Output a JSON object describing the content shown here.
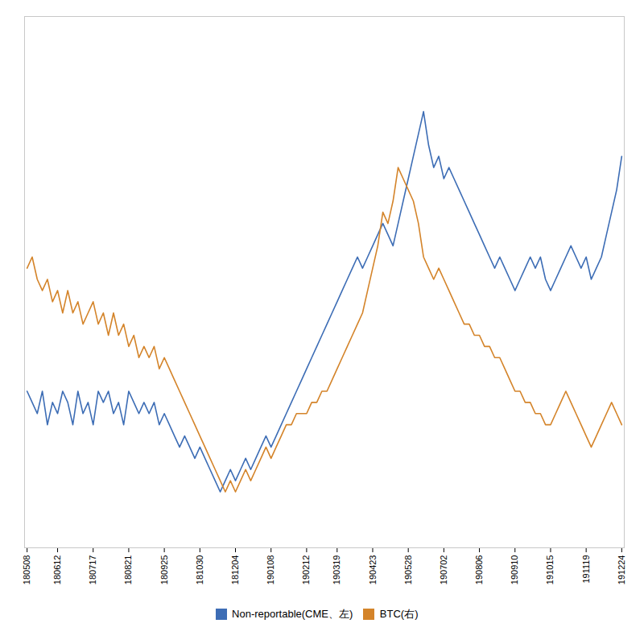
{
  "chart_data": {
    "type": "line",
    "categories": [
      "180508",
      null,
      null,
      null,
      null,
      null,
      "180612",
      null,
      null,
      null,
      null,
      null,
      null,
      "180717",
      null,
      null,
      null,
      null,
      null,
      null,
      "180821",
      null,
      null,
      null,
      null,
      null,
      null,
      "180925",
      null,
      null,
      null,
      null,
      null,
      null,
      "181030",
      null,
      null,
      null,
      null,
      null,
      null,
      "181204",
      null,
      null,
      null,
      null,
      null,
      null,
      "190108",
      null,
      null,
      null,
      null,
      null,
      null,
      "190212",
      null,
      null,
      null,
      null,
      null,
      "190319",
      null,
      null,
      null,
      null,
      null,
      null,
      "190423",
      null,
      null,
      null,
      null,
      null,
      null,
      "190528",
      null,
      null,
      null,
      null,
      null,
      null,
      "190702",
      null,
      null,
      null,
      null,
      null,
      null,
      "190806",
      null,
      null,
      null,
      null,
      null,
      null,
      "190910",
      null,
      null,
      null,
      null,
      null,
      null,
      "191015",
      null,
      null,
      null,
      null,
      null,
      null,
      "191119",
      null,
      null,
      null,
      null,
      null,
      null,
      "191224"
    ],
    "series": [
      {
        "name": "Non-reportable(CME、左)",
        "color": "#3D6DB5",
        "values": [
          38,
          36,
          34,
          38,
          32,
          36,
          34,
          38,
          36,
          32,
          38,
          34,
          36,
          32,
          38,
          36,
          38,
          34,
          36,
          32,
          38,
          36,
          34,
          36,
          34,
          36,
          32,
          34,
          32,
          30,
          28,
          30,
          28,
          26,
          28,
          26,
          24,
          22,
          20,
          22,
          24,
          22,
          24,
          26,
          24,
          26,
          28,
          30,
          28,
          30,
          32,
          34,
          36,
          38,
          40,
          42,
          44,
          46,
          48,
          50,
          52,
          54,
          56,
          58,
          60,
          62,
          60,
          62,
          64,
          66,
          68,
          66,
          64,
          68,
          72,
          76,
          80,
          84,
          88,
          82,
          78,
          80,
          76,
          78,
          76,
          74,
          72,
          70,
          68,
          66,
          64,
          62,
          60,
          62,
          60,
          58,
          56,
          58,
          60,
          62,
          60,
          62,
          58,
          56,
          58,
          60,
          62,
          64,
          62,
          60,
          62,
          58,
          60,
          62,
          66,
          70,
          74,
          80
        ]
      },
      {
        "name": "BTC(右)",
        "color": "#D4842A",
        "values": [
          60,
          62,
          58,
          56,
          58,
          54,
          56,
          52,
          56,
          52,
          54,
          50,
          52,
          54,
          50,
          52,
          48,
          52,
          48,
          50,
          46,
          48,
          44,
          46,
          44,
          46,
          42,
          44,
          42,
          40,
          38,
          36,
          34,
          32,
          30,
          28,
          26,
          24,
          22,
          20,
          22,
          20,
          22,
          24,
          22,
          24,
          26,
          28,
          26,
          28,
          30,
          32,
          32,
          34,
          34,
          34,
          36,
          36,
          38,
          38,
          40,
          42,
          44,
          46,
          48,
          50,
          52,
          56,
          60,
          64,
          70,
          68,
          72,
          78,
          76,
          74,
          72,
          68,
          62,
          60,
          58,
          60,
          58,
          56,
          54,
          52,
          50,
          50,
          48,
          48,
          46,
          46,
          44,
          44,
          42,
          40,
          38,
          38,
          36,
          36,
          34,
          34,
          32,
          32,
          34,
          36,
          38,
          36,
          34,
          32,
          30,
          28,
          30,
          32,
          34,
          36,
          34,
          32
        ]
      }
    ],
    "ylim": [
      10,
      105
    ],
    "yticks": [],
    "grid": false,
    "tick_labels": "x",
    "legend": "bottom"
  }
}
